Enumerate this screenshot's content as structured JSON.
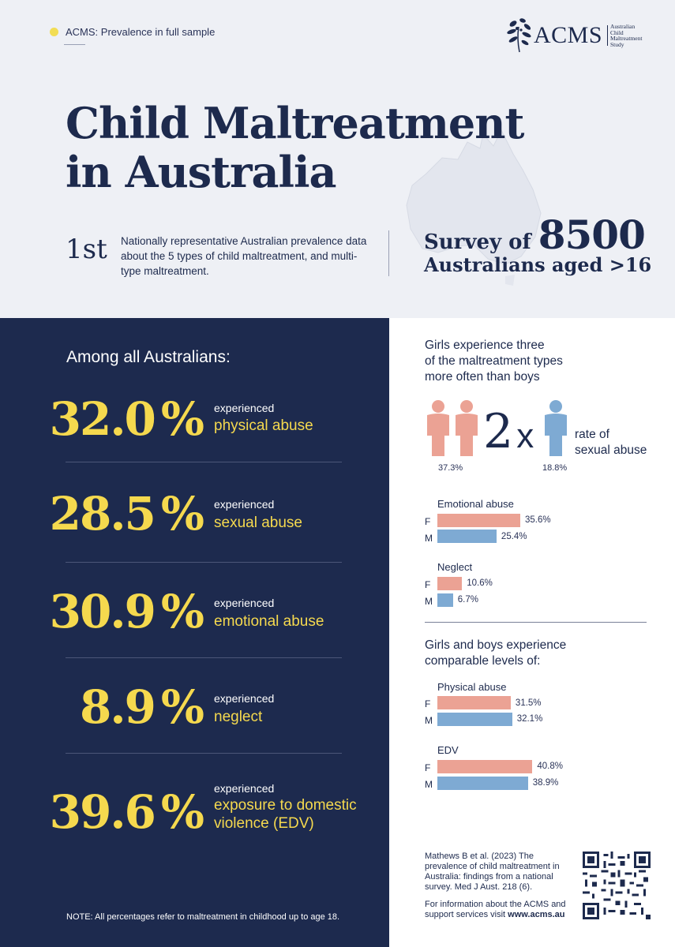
{
  "header": {
    "tag": "ACMS: Prevalence in full sample",
    "logo": {
      "name": "ACMS",
      "subtitle_lines": [
        "Australian",
        "Child",
        "Maltreatment",
        "Study"
      ]
    },
    "title_lines": [
      "Child Maltreatment",
      "in Australia"
    ],
    "first": {
      "number": "1st",
      "text": "Nationally representative Australian prevalence data about the 5 types of child maltreatment, and multi-type maltreatment."
    },
    "survey": {
      "prefix": "Survey of",
      "count": "8500",
      "line2": "Australians aged >16"
    }
  },
  "left": {
    "heading": "Among all Australians:",
    "stats": [
      {
        "value": "32.0",
        "sign": "%",
        "prefix": "experienced",
        "type": "physical abuse"
      },
      {
        "value": "28.5",
        "sign": "%",
        "prefix": "experienced",
        "type": "sexual abuse"
      },
      {
        "value": "30.9",
        "sign": "%",
        "prefix": "experienced",
        "type": "emotional abuse"
      },
      {
        "value": "8.9",
        "sign": "%",
        "prefix": "experienced",
        "type": "neglect"
      },
      {
        "value": "39.6",
        "sign": "%",
        "prefix": "experienced",
        "type": "exposure to domestic violence (EDV)"
      }
    ],
    "note": "NOTE: All percentages refer to maltreatment in childhood up to age 18."
  },
  "right": {
    "girls_heading": "Girls experience three of the maltreatment types more often than boys",
    "girls_heading_lines": [
      "Girls experience three",
      "of the maltreatment types",
      "more often than boys"
    ],
    "sexual": {
      "girls_pct": "37.3%",
      "boys_pct": "18.8%",
      "multiplier": "2",
      "x": "x",
      "rate_lines": [
        "rate of",
        "sexual abuse"
      ]
    },
    "comparable_heading_lines": [
      "Girls and boys experience",
      "comparable levels of:"
    ],
    "groups": [
      {
        "label": "Emotional abuse",
        "f_label": "F",
        "m_label": "M",
        "f": 35.6,
        "m": 25.4,
        "f_text": "35.6%",
        "m_text": "25.4%"
      },
      {
        "label": "Neglect",
        "f_label": "F",
        "m_label": "M",
        "f": 10.6,
        "m": 6.7,
        "f_text": "10.6%",
        "m_text": "6.7%"
      },
      {
        "label": "Physical abuse",
        "f_label": "F",
        "m_label": "M",
        "f": 31.5,
        "m": 32.1,
        "f_text": "31.5%",
        "m_text": "32.1%"
      },
      {
        "label": "EDV",
        "f_label": "F",
        "m_label": "M",
        "f": 40.8,
        "m": 38.9,
        "f_text": "40.8%",
        "m_text": "38.9%"
      }
    ],
    "citation": "Mathews B et al. (2023) The prevalence of child maltreatment in Australia: findings from a national survey. Med J Aust. 218 (6).",
    "info_text": "For information about the ACMS and support services visit",
    "info_url": "www.acms.au"
  },
  "colors": {
    "navy": "#1d2a4e",
    "yellow": "#f5d94e",
    "female": "#eba294",
    "male": "#7eaad3"
  },
  "icons": [
    "leaf-logo-icon",
    "australia-map-icon",
    "girl-figure-icon",
    "boy-figure-icon",
    "qr-code-icon"
  ]
}
